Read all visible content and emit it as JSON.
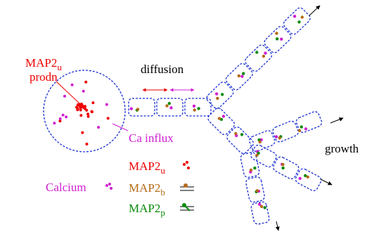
{
  "labels": {
    "production": {
      "base": "MAP2",
      "sub": "u",
      "line2": "prodn"
    },
    "diffusion": "diffusion",
    "ca_influx": "Ca influx",
    "growth": "growth",
    "calcium": "Calcium",
    "map2u": {
      "base": "MAP2",
      "sub": "u"
    },
    "map2b": {
      "base": "MAP2",
      "sub": "b"
    },
    "map2p": {
      "base": "MAP2",
      "sub": "p"
    }
  }
}
